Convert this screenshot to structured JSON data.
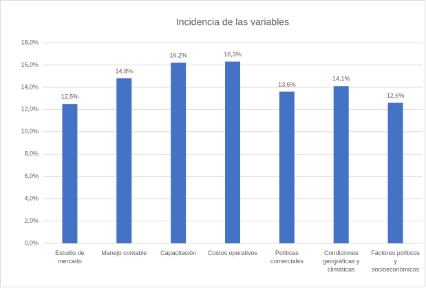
{
  "chart_data": {
    "type": "bar",
    "title": "Incidencia de las variables",
    "categories": [
      "Estudio de mercado",
      "Manejo contable",
      "Capacitación",
      "Costos operativos",
      "Políticas comerciales",
      "Condiciones geográficas y climáticas",
      "Factores políticos y socioeconómicos"
    ],
    "values": [
      12.5,
      14.8,
      16.2,
      16.3,
      13.6,
      14.1,
      12.6
    ],
    "value_labels": [
      "12,5%",
      "14,8%",
      "16,2%",
      "16,3%",
      "13,6%",
      "14,1%",
      "12,6%"
    ],
    "color": "#4472c4",
    "ylim": [
      0,
      18
    ],
    "yticks": [
      {
        "value": 0,
        "label": "0,0%"
      },
      {
        "value": 2,
        "label": "2,0%"
      },
      {
        "value": 4,
        "label": "4,0%"
      },
      {
        "value": 6,
        "label": "6,0%"
      },
      {
        "value": 8,
        "label": "8,0%"
      },
      {
        "value": 10,
        "label": "10,0%"
      },
      {
        "value": 12,
        "label": "12,0%"
      },
      {
        "value": 14,
        "label": "14,0%"
      },
      {
        "value": 16,
        "label": "16,0%"
      },
      {
        "value": 18,
        "label": "18,0%"
      }
    ],
    "grid": true
  }
}
